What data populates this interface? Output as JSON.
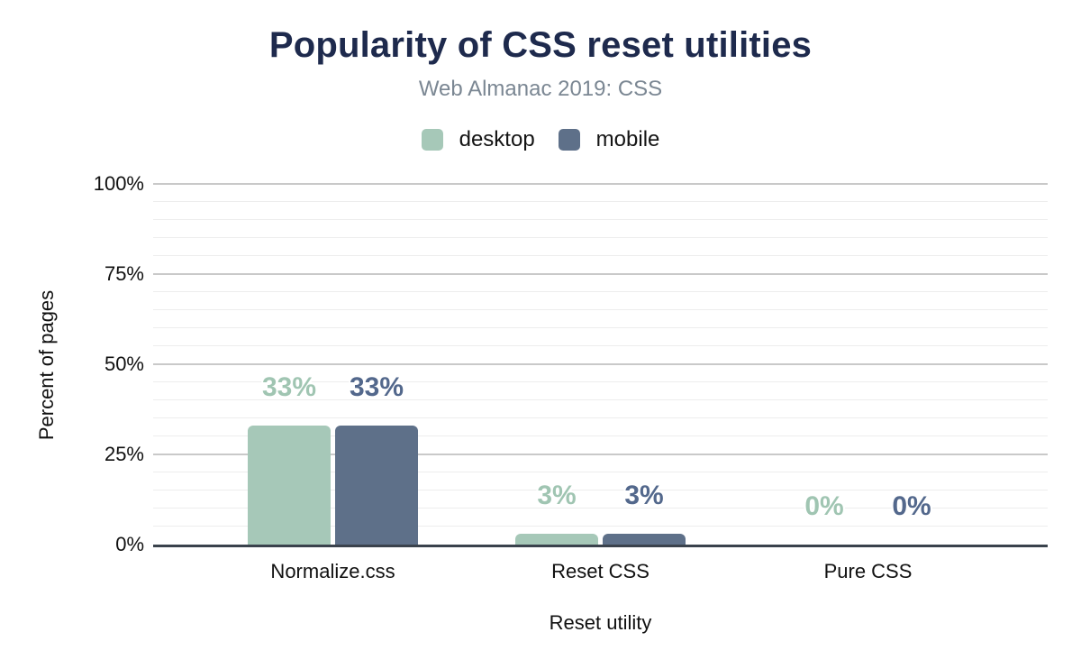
{
  "chart_data": {
    "type": "bar",
    "title": "Popularity of CSS reset utilities",
    "subtitle": "Web Almanac 2019: CSS",
    "categories": [
      "Normalize.css",
      "Reset CSS",
      "Pure CSS"
    ],
    "series": [
      {
        "name": "desktop",
        "color": "#a6c8b8",
        "label_color": "#a0c5b2",
        "values": [
          33,
          3,
          0
        ],
        "value_labels": [
          "33%",
          "3%",
          "0%"
        ]
      },
      {
        "name": "mobile",
        "color": "#5e7089",
        "label_color": "#53688c",
        "values": [
          33,
          3,
          0
        ],
        "value_labels": [
          "33%",
          "3%",
          "0%"
        ]
      }
    ],
    "xlabel": "Reset utility",
    "ylabel": "Percent of pages",
    "ylim": [
      0,
      100
    ],
    "yticks": [
      {
        "value": 0,
        "label": "0%"
      },
      {
        "value": 25,
        "label": "25%"
      },
      {
        "value": 50,
        "label": "50%"
      },
      {
        "value": 75,
        "label": "75%"
      },
      {
        "value": 100,
        "label": "100%"
      }
    ],
    "minor_grid_step": 5,
    "major_grid_step": 25,
    "grid": "horizontal",
    "legend_position": "top",
    "colors": {
      "title": "#1e2a4d",
      "subtitle": "#7b8793",
      "axis_line": "#3a424c",
      "major_grid": "#c9c9c9",
      "minor_grid": "#ededed",
      "text": "#111111"
    }
  }
}
